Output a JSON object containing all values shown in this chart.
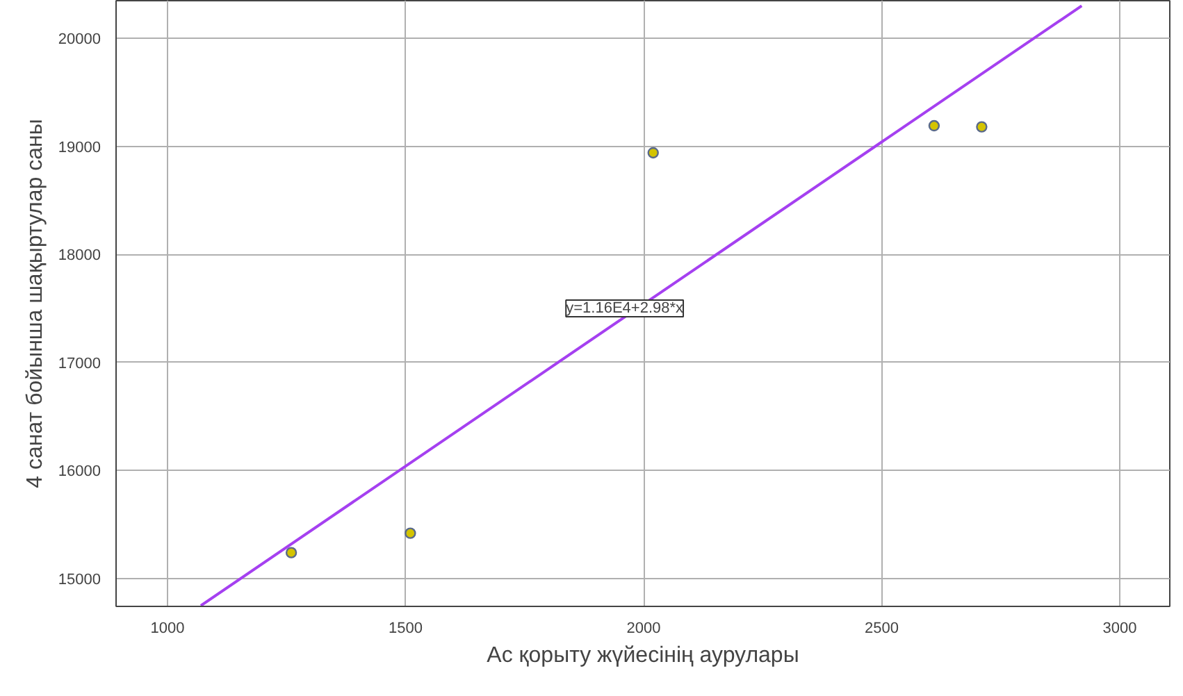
{
  "chart_data": {
    "type": "scatter",
    "xlabel": "Ас қорыту жүйесінің аурулары",
    "ylabel": "4 санат бойынша шақыртулар саны",
    "xlim": [
      892,
      3105
    ],
    "ylim": [
      14743,
      20347
    ],
    "xticks": [
      1000,
      1500,
      2000,
      2500,
      3000
    ],
    "yticks": [
      15000,
      16000,
      17000,
      18000,
      19000,
      20000
    ],
    "grid": true,
    "series": [
      {
        "marker": "circle",
        "color": "#d4c400",
        "x": [
          1260,
          1510,
          2020,
          2610,
          2710
        ],
        "values": [
          15240,
          15420,
          18940,
          19190,
          19180
        ]
      },
      {
        "type": "line",
        "marker": "none",
        "color": "#a540f0",
        "x": [
          1070,
          2920
        ],
        "values": [
          14750,
          20300
        ]
      }
    ],
    "annotations": [
      {
        "text": "y=1.16E4+2.98*x",
        "x": 1960,
        "y": 17500
      }
    ]
  }
}
